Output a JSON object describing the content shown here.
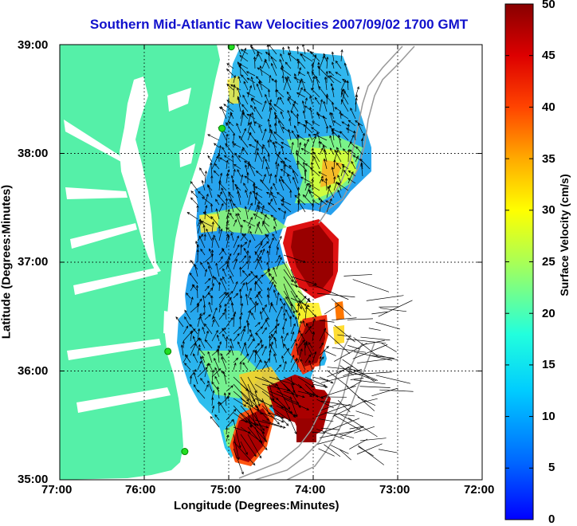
{
  "title": "Southern Mid-Atlantic Raw Velocities 2007/09/02 1700 GMT",
  "x_axis": {
    "label": "Longitude (Degrees:Minutes)",
    "ticks": [
      "77:00",
      "76:00",
      "75:00",
      "74:00",
      "73:00",
      "72:00"
    ]
  },
  "y_axis": {
    "label": "Latitude (Degrees:Minutes)",
    "ticks": [
      "39:00",
      "38:00",
      "37:00",
      "36:00",
      "35:00"
    ]
  },
  "colorbar": {
    "label": "Surface Velocity (cm/s)",
    "min": 0,
    "max": 50,
    "ticks": [
      "0",
      "5",
      "10",
      "15",
      "20",
      "25",
      "30",
      "35",
      "40",
      "45",
      "50"
    ],
    "colormap": "jet"
  },
  "colors": {
    "land": "#55f0a8",
    "title": "#1111cc",
    "isobath": "#999999",
    "station_marker": "#22dd22"
  },
  "chart_data": {
    "type": "heatmap",
    "subtype": "geographic vector field",
    "title": "Southern Mid-Atlantic Raw Velocities 2007/09/02 1700 GMT",
    "xlabel": "Longitude (Degrees:Minutes)",
    "ylabel": "Latitude (Degrees:Minutes)",
    "xlim": [
      -77,
      -72
    ],
    "ylim": [
      35,
      39
    ],
    "grid": true,
    "colorbar_range": [
      0,
      50
    ],
    "stations": [
      {
        "lon": -74.97,
        "lat": 38.98
      },
      {
        "lon": -75.08,
        "lat": 38.23
      },
      {
        "lon": -75.72,
        "lat": 36.18
      },
      {
        "lon": -75.52,
        "lat": 35.26
      }
    ]
  }
}
